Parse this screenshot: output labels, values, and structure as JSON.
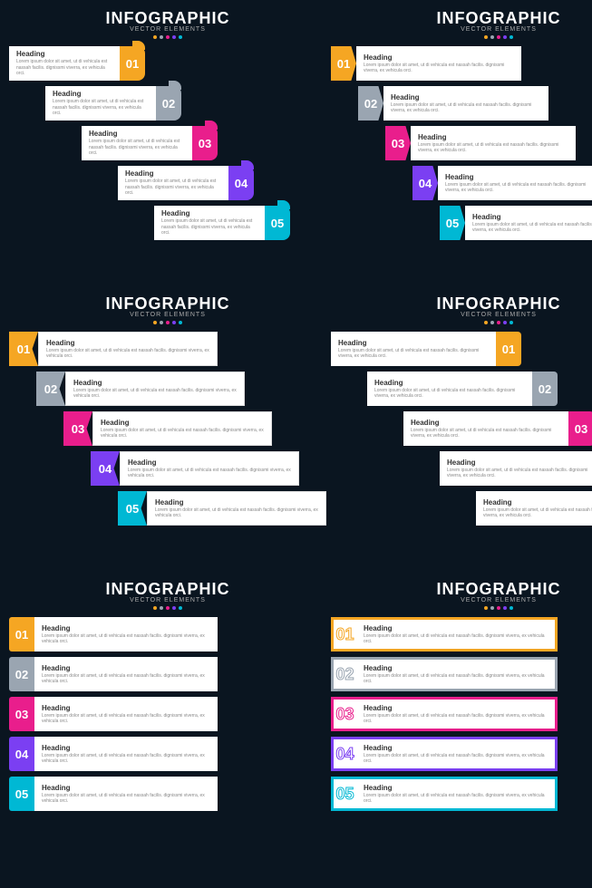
{
  "title": "INFOGRAPHIC",
  "subtitle": "VECTOR ELEMENTS",
  "heading": "Heading",
  "body": "Lorem ipsum dolor sit amet, ut di vehicula est nassah facilis. dignissmi viverra, ex vehicula orci.",
  "colors": [
    "#f5a623",
    "#9aa5b1",
    "#e91e8c",
    "#7b3ff2",
    "#00b8d4"
  ],
  "numbers": [
    "01",
    "02",
    "03",
    "04",
    "05"
  ],
  "panels": [
    {
      "style": "sA",
      "offsets": [
        0,
        40,
        80,
        120,
        160
      ]
    },
    {
      "style": "sB",
      "offsets": [
        0,
        30,
        60,
        90,
        120
      ]
    },
    {
      "style": "sC",
      "offsets": [
        0,
        30,
        60,
        90,
        120
      ]
    },
    {
      "style": "sD",
      "offsets": [
        0,
        40,
        80,
        120,
        160
      ]
    },
    {
      "style": "sE",
      "offsets": [
        0,
        0,
        0,
        0,
        0
      ]
    },
    {
      "style": "sF",
      "offsets": [
        0,
        0,
        0,
        0,
        0
      ]
    }
  ]
}
